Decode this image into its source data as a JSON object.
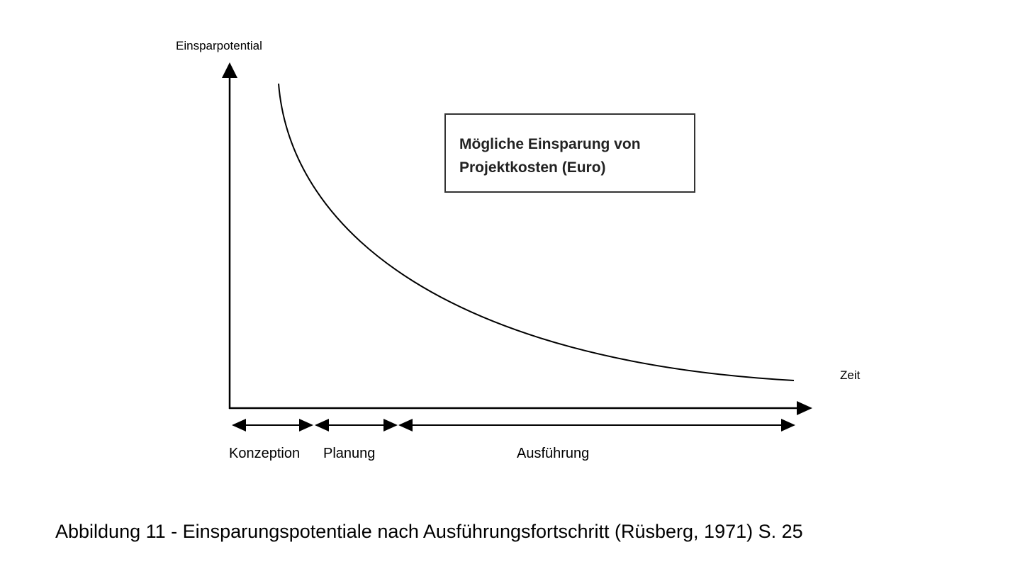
{
  "diagram": {
    "y_axis_label": "Einsparpotential",
    "x_axis_label": "Zeit",
    "legend_line1": "Mögliche Einsparung von",
    "legend_line2": "Projektkosten (Euro)",
    "phases": [
      "Konzeption",
      "Planung",
      "Ausführung"
    ],
    "line_color": "#000000"
  },
  "caption": "Abbildung 11 - Einsparungspotentiale nach Ausführungsfortschritt (Rüsberg, 1971) S. 25"
}
